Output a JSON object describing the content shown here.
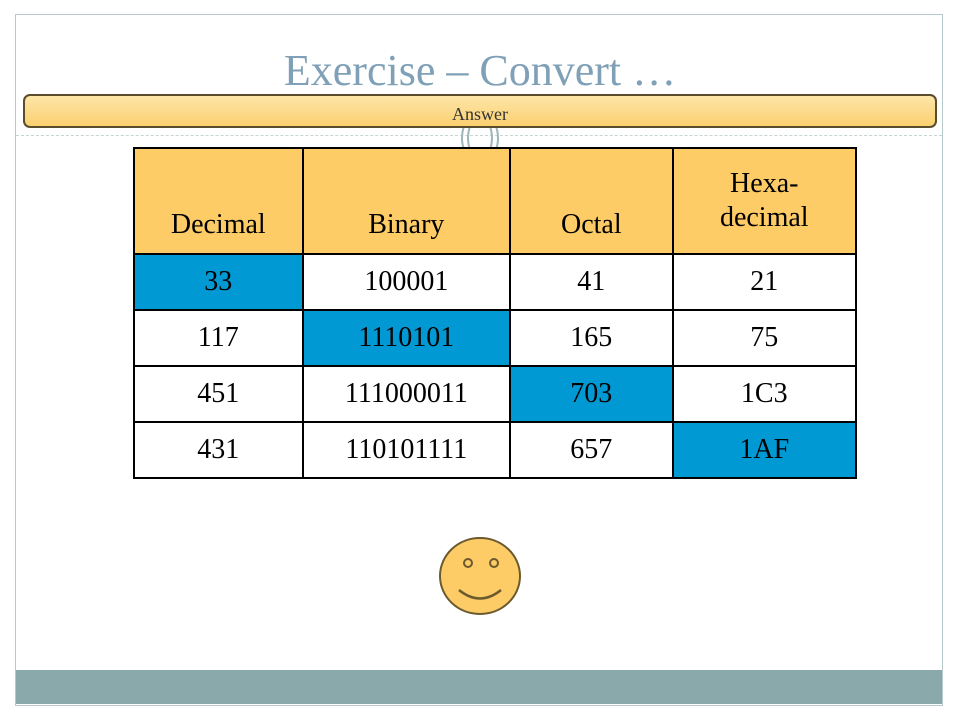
{
  "slide": {
    "title": "Exercise – Convert …",
    "answer_label": "Answer"
  },
  "table": {
    "headers": [
      "Decimal",
      "Binary",
      "Octal",
      "Hexa-\ndecimal"
    ],
    "rows": [
      {
        "cells": [
          "33",
          "100001",
          "41",
          "21"
        ],
        "highlight_index": 0
      },
      {
        "cells": [
          "117",
          "1110101",
          "165",
          "75"
        ],
        "highlight_index": 1
      },
      {
        "cells": [
          "451",
          "111000011",
          "703",
          "1C3"
        ],
        "highlight_index": 2
      },
      {
        "cells": [
          "431",
          "110101111",
          "657",
          "1AF"
        ],
        "highlight_index": 3
      }
    ]
  },
  "colors": {
    "header_fill": "#fdcc67",
    "highlight_fill": "#0099d4",
    "title_color": "#7fa0b6",
    "footer_bar": "#8aa9ab",
    "smiley_fill": "#fdcc67"
  },
  "icons": {
    "decoration": "smiley-face-icon"
  }
}
